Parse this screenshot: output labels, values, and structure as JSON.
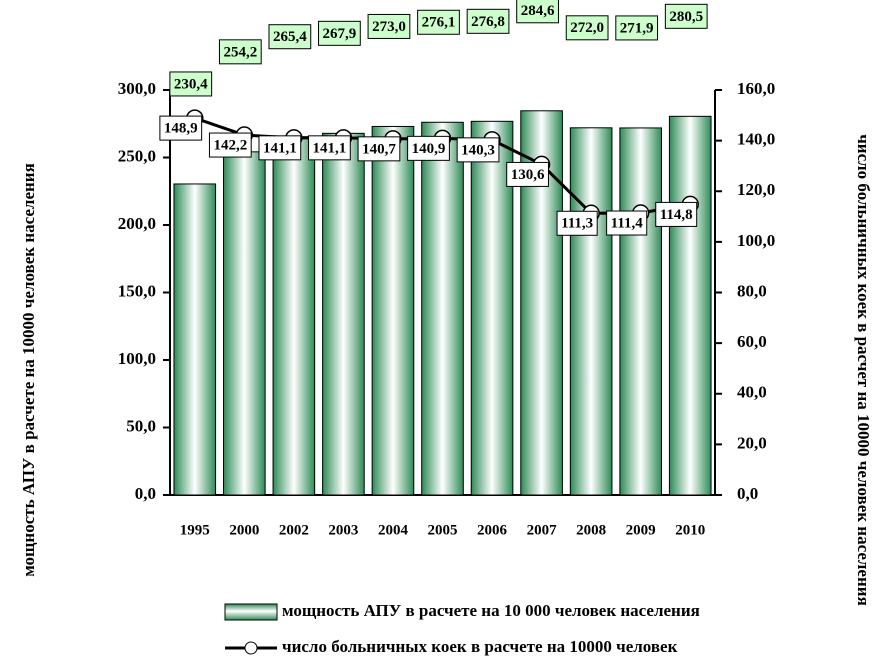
{
  "chart_data": {
    "type": "bar_line",
    "categories": [
      "1995",
      "2000",
      "2002",
      "2003",
      "2004",
      "2005",
      "2006",
      "2007",
      "2008",
      "2009",
      "2010"
    ],
    "series": [
      {
        "name": "мощность АПУ в расчете на 10 000 человек населения",
        "type": "bar",
        "axis": "y",
        "values": [
          230.4,
          254.2,
          265.4,
          267.9,
          273.0,
          276.1,
          276.8,
          284.6,
          272.0,
          271.9,
          280.5
        ],
        "value_labels": [
          "230,4",
          "254,2",
          "265,4",
          "267,9",
          "273,0",
          "276,1",
          "276,8",
          "284,6",
          "272,0",
          "271,9",
          "280,5"
        ],
        "color": "#2e8b57"
      },
      {
        "name": "число больничных коек в расчете на 10000 человек",
        "type": "line",
        "axis": "y2",
        "values": [
          148.9,
          142.2,
          141.1,
          141.1,
          140.7,
          140.9,
          140.3,
          130.6,
          111.3,
          111.4,
          114.8
        ],
        "value_labels": [
          "148,9",
          "142,2",
          "141,1",
          "141,1",
          "140,7",
          "140,9",
          "140,3",
          "130,6",
          "111,3",
          "111,4",
          "114,8"
        ],
        "color": "#000000"
      }
    ],
    "y_label": "мощность АПУ в  расчете на 10000 человек населения",
    "y2_label": "число больничных коек в расчет на 10000 человек населения",
    "ylim": [
      0,
      300
    ],
    "yticks": [
      {
        "value": 0,
        "label": "0,0"
      },
      {
        "value": 50,
        "label": "50,0"
      },
      {
        "value": 100,
        "label": "100,0"
      },
      {
        "value": 150,
        "label": "150,0"
      },
      {
        "value": 200,
        "label": "200,0"
      },
      {
        "value": 250,
        "label": "250,0"
      },
      {
        "value": 300,
        "label": "300,0"
      }
    ],
    "y2lim": [
      0,
      160
    ],
    "y2ticks": [
      {
        "value": 0,
        "label": "0,0"
      },
      {
        "value": 20,
        "label": "20,0"
      },
      {
        "value": 40,
        "label": "40,0"
      },
      {
        "value": 60,
        "label": "60,0"
      },
      {
        "value": 80,
        "label": "80,0"
      },
      {
        "value": 100,
        "label": "100,0"
      },
      {
        "value": 120,
        "label": "120,0"
      },
      {
        "value": 140,
        "label": "140,0"
      },
      {
        "value": 160,
        "label": "160,0"
      }
    ],
    "legend": "bottom"
  }
}
